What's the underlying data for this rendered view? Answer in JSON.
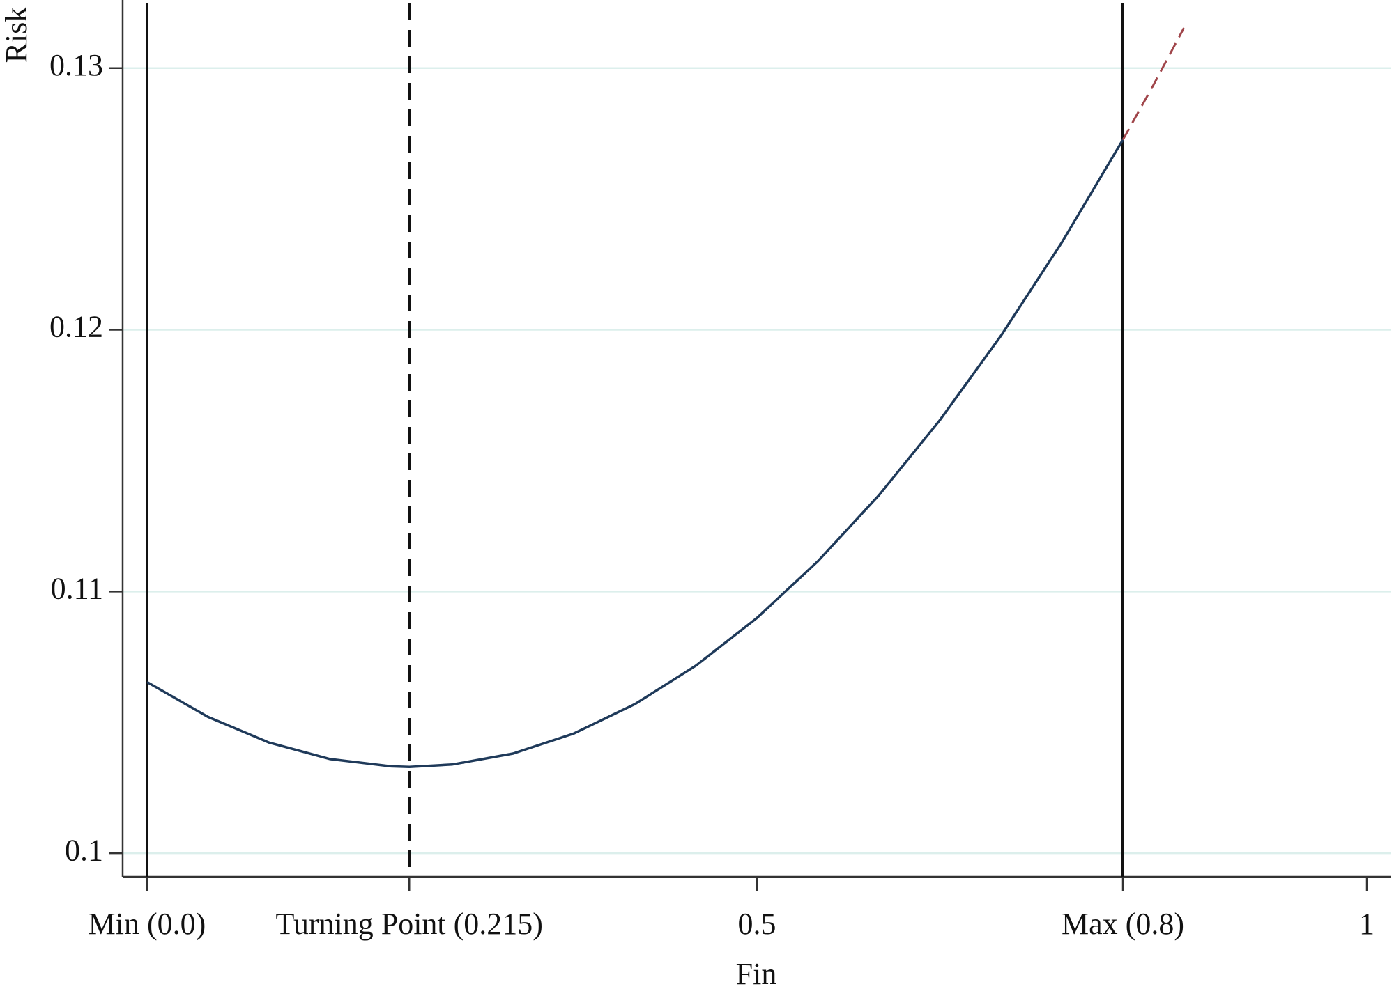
{
  "chart_data": {
    "type": "line",
    "xlabel": "Fin",
    "ylabel": "Risk",
    "xlim": [
      -0.02,
      1.02
    ],
    "ylim": [
      0.0991,
      0.1326
    ],
    "xticks": [
      {
        "value": 0,
        "label": "Min (0.0)"
      },
      {
        "value": 0.215,
        "label": "Turning Point (0.215)"
      },
      0.5,
      {
        "value": 0.8,
        "label": "Max (0.8)"
      },
      1
    ],
    "yticks": [
      0.1,
      0.11,
      0.12,
      0.13
    ],
    "grid": true,
    "vlines": [
      {
        "x": 0,
        "dashed": false
      },
      {
        "x": 0.215,
        "dashed": true
      },
      {
        "x": 0.8,
        "dashed": false
      }
    ],
    "series": [
      {
        "color": "#1f3a5a",
        "dashed": false,
        "x": [
          0,
          0.05,
          0.1,
          0.15,
          0.2,
          0.215,
          0.25,
          0.3,
          0.35,
          0.4,
          0.45,
          0.5,
          0.55,
          0.6,
          0.65,
          0.7,
          0.75,
          0.8
        ],
        "values": [
          0.10654,
          0.10521,
          0.10423,
          0.1036,
          0.10332,
          0.1033,
          0.10339,
          0.10381,
          0.10458,
          0.1057,
          0.10717,
          0.10899,
          0.11116,
          0.11368,
          0.11655,
          0.11977,
          0.12334,
          0.12726
        ]
      },
      {
        "color": "#a0454a",
        "dashed": true,
        "x": [
          0.8,
          0.825,
          0.85
        ],
        "values": [
          0.12726,
          0.12935,
          0.13153
        ]
      }
    ]
  }
}
